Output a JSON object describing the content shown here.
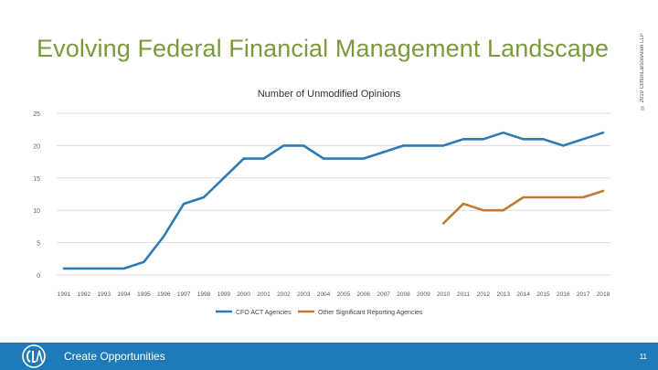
{
  "slide": {
    "title": "Evolving Federal Financial Management Landscape",
    "copyright": "© 2019 CliftonLarsonAllen LLP"
  },
  "chart_data": {
    "type": "line",
    "title": "Number of Unmodified Opinions",
    "xlabel": "",
    "ylabel": "",
    "ylim": [
      0,
      25
    ],
    "yticks": [
      0,
      5,
      10,
      15,
      20,
      25
    ],
    "grid": true,
    "legend_position": "bottom",
    "categories": [
      "1991",
      "1992",
      "1993",
      "1994",
      "1995",
      "1996",
      "1997",
      "1998",
      "1999",
      "2000",
      "2001",
      "2002",
      "2003",
      "2004",
      "2005",
      "2006",
      "2007",
      "2008",
      "2009",
      "2010",
      "2011",
      "2012",
      "2013",
      "2014",
      "2015",
      "2016",
      "2017",
      "2018"
    ],
    "series": [
      {
        "name": "CFO ACT Agencies",
        "color": "#2e7bb4",
        "values": [
          1,
          1,
          1,
          1,
          2,
          6,
          11,
          12,
          15,
          18,
          18,
          20,
          20,
          18,
          18,
          18,
          19,
          20,
          20,
          20,
          21,
          21,
          22,
          21,
          21,
          20,
          21,
          22
        ]
      },
      {
        "name": "Other Significant Reporting Agencies",
        "color": "#c07a35",
        "values": [
          null,
          null,
          null,
          null,
          null,
          null,
          null,
          null,
          null,
          null,
          null,
          null,
          null,
          null,
          null,
          null,
          null,
          null,
          null,
          8,
          11,
          10,
          10,
          12,
          12,
          12,
          12,
          13
        ]
      }
    ]
  },
  "footer": {
    "tagline": "Create Opportunities",
    "page_number": "11",
    "accent_color": "#1e7bb8"
  },
  "logo": {
    "icon": "cla-logo-icon"
  }
}
